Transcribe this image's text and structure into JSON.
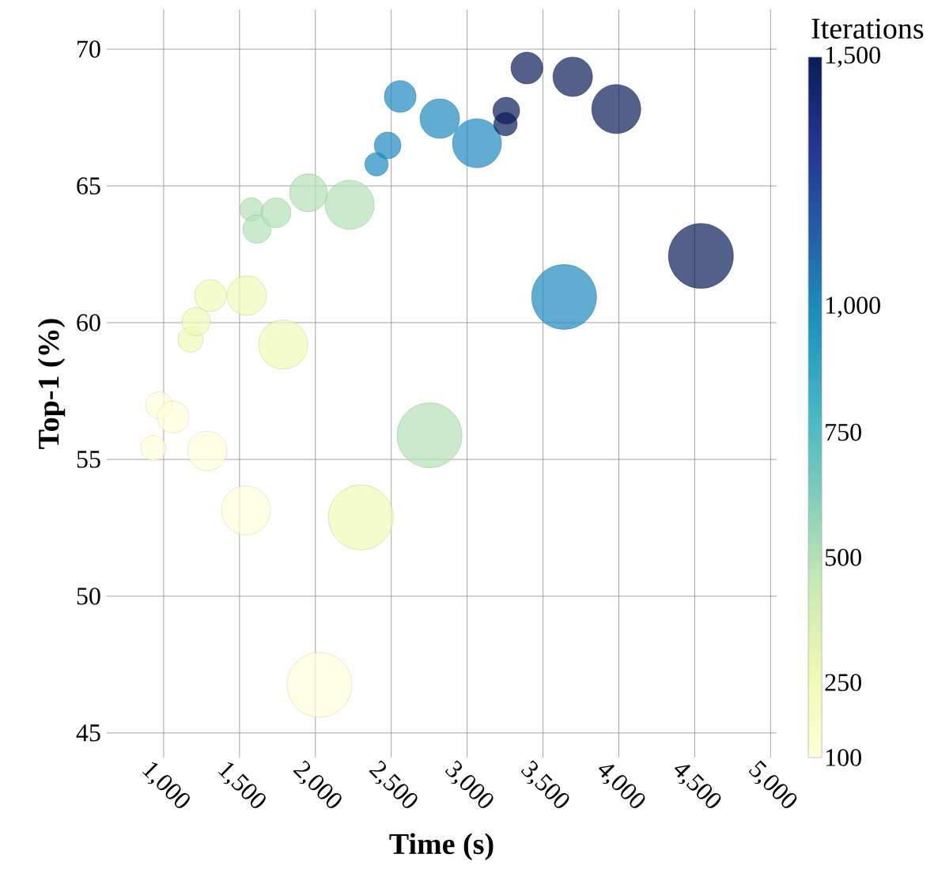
{
  "chart_data": {
    "type": "bubble",
    "xlabel": "Time (s)",
    "ylabel": "Top-1 (%)",
    "clabel": "Iterations",
    "x": [
      969,
      1063,
      932,
      1287,
      1542,
      2027,
      1177,
      1214,
      1308,
      1548,
      1787,
      2299,
      1579,
      1615,
      1741,
      1954,
      2226,
      2752,
      2403,
      2476,
      2559,
      2820,
      3065,
      3639,
      3253,
      3258,
      3394,
      3696,
      3983,
      4541
    ],
    "values": [
      56.98,
      56.55,
      55.42,
      55.31,
      53.14,
      46.76,
      59.38,
      60.04,
      60.99,
      60.99,
      59.2,
      52.88,
      64.14,
      63.42,
      64.02,
      64.75,
      64.31,
      55.88,
      65.79,
      66.48,
      68.27,
      67.46,
      66.56,
      60.94,
      67.26,
      67.75,
      69.31,
      68.99,
      67.81,
      62.44
    ],
    "sizes": [
      0.17,
      0.24,
      0.15,
      0.37,
      0.57,
      1,
      0.15,
      0.19,
      0.24,
      0.37,
      0.57,
      1,
      0.13,
      0.19,
      0.21,
      0.34,
      0.57,
      1,
      0.13,
      0.17,
      0.24,
      0.37,
      0.57,
      1,
      0.13,
      0.17,
      0.24,
      0.37,
      0.57,
      1
    ],
    "cvalues": [
      100,
      100,
      100,
      100,
      100,
      100,
      250,
      250,
      250,
      250,
      250,
      250,
      500,
      500,
      500,
      500,
      500,
      500,
      1000,
      1000,
      1000,
      1000,
      1000,
      1000,
      1500,
      1500,
      1500,
      1500,
      1500,
      1500
    ],
    "xlim": [
      625,
      5040
    ],
    "ylim": [
      44.1,
      71.45
    ],
    "xticks": [
      {
        "value": 1000,
        "label": "1,000"
      },
      {
        "value": 1500,
        "label": "1,500"
      },
      {
        "value": 2000,
        "label": "2,000"
      },
      {
        "value": 2500,
        "label": "2,500"
      },
      {
        "value": 3000,
        "label": "3,000"
      },
      {
        "value": 3500,
        "label": "3,500"
      },
      {
        "value": 4000,
        "label": "4,000"
      },
      {
        "value": 4500,
        "label": "4,500"
      },
      {
        "value": 5000,
        "label": "5,000"
      }
    ],
    "yticks": [
      45,
      50,
      55,
      60,
      65,
      70
    ],
    "clim": [
      100,
      1500
    ],
    "cticks": [
      100,
      250,
      500,
      750,
      {
        "value": 1000,
        "label": "1,000"
      },
      {
        "value": 1500,
        "label": "1,500"
      }
    ],
    "grid": true
  }
}
